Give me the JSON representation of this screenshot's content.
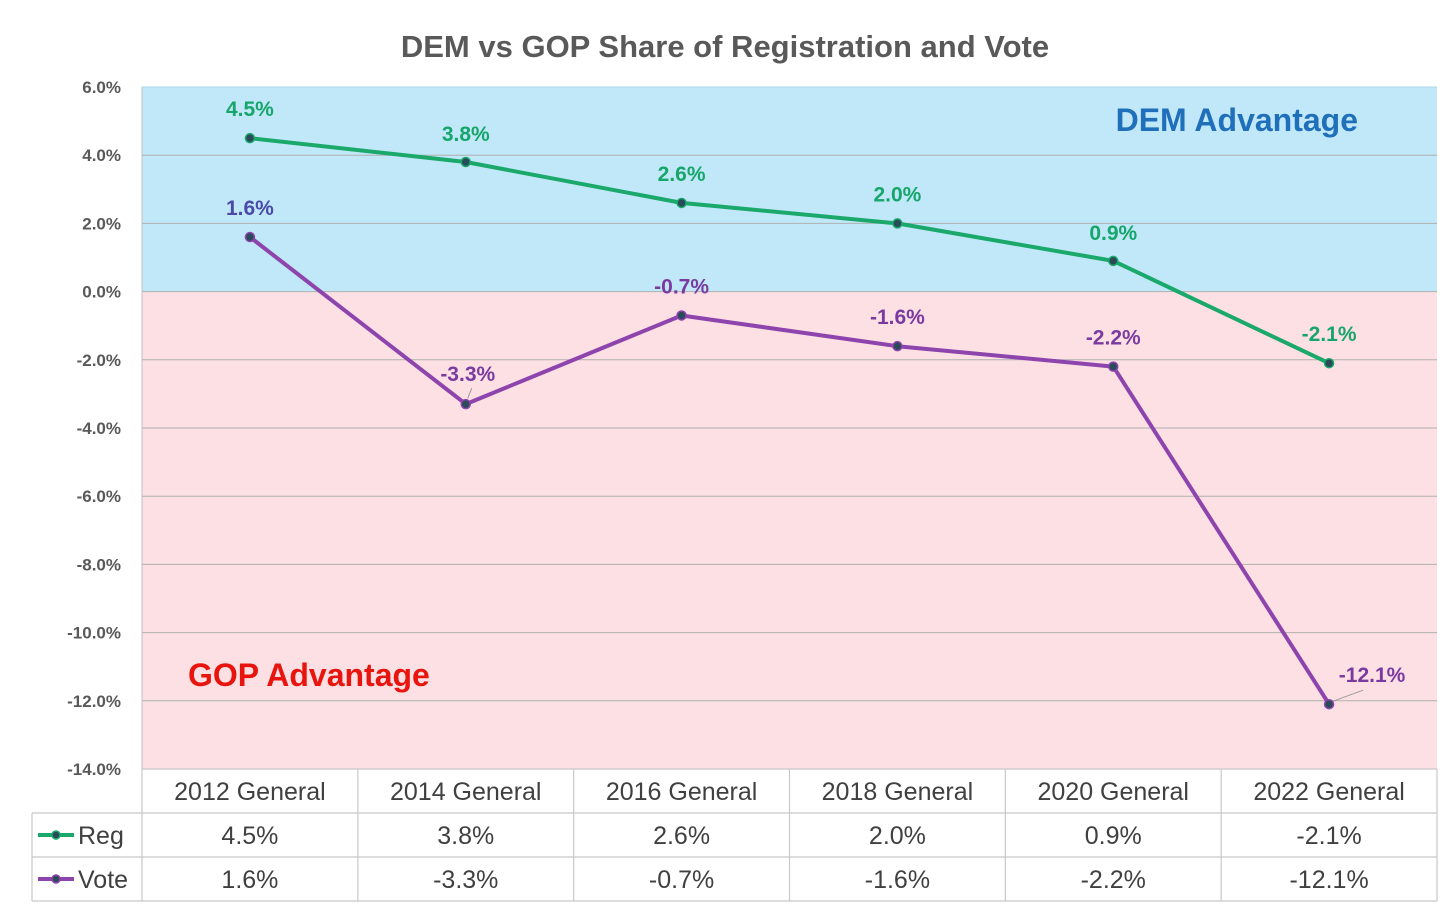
{
  "chart_data": {
    "type": "line",
    "title": "DEM vs GOP Share of Registration and Vote",
    "categories": [
      "2012 General",
      "2014 General",
      "2016 General",
      "2018 General",
      "2020 General",
      "2022 General"
    ],
    "ylim": [
      -14,
      6
    ],
    "yticks": [
      "6.0%",
      "4.0%",
      "2.0%",
      "0.0%",
      "-2.0%",
      "-4.0%",
      "-6.0%",
      "-8.0%",
      "-10.0%",
      "-12.0%",
      "-14.0%"
    ],
    "grid": true,
    "series": [
      {
        "name": "Reg",
        "values": [
          4.5,
          3.8,
          2.6,
          2.0,
          0.9,
          -2.1
        ],
        "labels": [
          "4.5%",
          "3.8%",
          "2.6%",
          "2.0%",
          "0.9%",
          "-2.1%"
        ],
        "color": "#1aa86b",
        "label_color": "#16a56a"
      },
      {
        "name": "Vote",
        "values": [
          1.6,
          -3.3,
          -0.7,
          -1.6,
          -2.2,
          -12.1
        ],
        "labels": [
          "1.6%",
          "-3.3%",
          "-0.7%",
          "-1.6%",
          "-2.2%",
          "-12.1%"
        ],
        "color": "#8e44ad",
        "label_color": "#7a3aa0"
      }
    ],
    "regions": {
      "dem": {
        "label": "DEM Advantage",
        "fill": "#c0e8f9",
        "text_color": "#1f6fba"
      },
      "gop": {
        "label": "GOP Advantage",
        "fill": "#fde0e3",
        "text_color": "#e8140e"
      }
    },
    "data_table": true
  }
}
